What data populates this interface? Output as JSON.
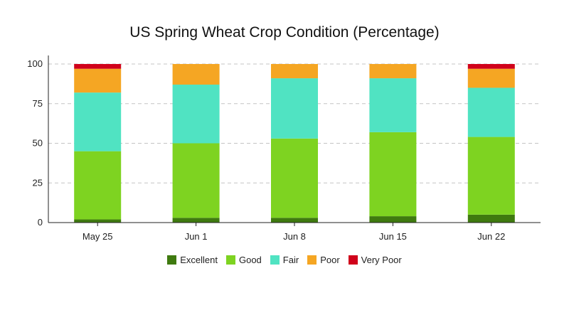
{
  "chart_data": {
    "type": "bar",
    "stacked": true,
    "title": "US Spring Wheat Crop Condition (Percentage)",
    "xlabel": "",
    "ylabel": "",
    "ylim": [
      0,
      100
    ],
    "yticks": [
      0,
      25,
      50,
      75,
      100
    ],
    "grid": "horizontal-dashed",
    "legend_position": "bottom",
    "categories": [
      "May 25",
      "Jun 1",
      "Jun 8",
      "Jun 15",
      "Jun 22"
    ],
    "series": [
      {
        "name": "Excellent",
        "color": "#3f7a0f",
        "values": [
          2,
          3,
          3,
          4,
          5
        ]
      },
      {
        "name": "Good",
        "color": "#7ed321",
        "values": [
          43,
          47,
          50,
          53,
          49
        ]
      },
      {
        "name": "Fair",
        "color": "#50e3c2",
        "values": [
          37,
          37,
          38,
          34,
          31
        ]
      },
      {
        "name": "Poor",
        "color": "#f5a623",
        "values": [
          15,
          13,
          9,
          9,
          12
        ]
      },
      {
        "name": "Very Poor",
        "color": "#d0021b",
        "values": [
          3,
          0,
          0,
          0,
          3
        ]
      }
    ]
  }
}
